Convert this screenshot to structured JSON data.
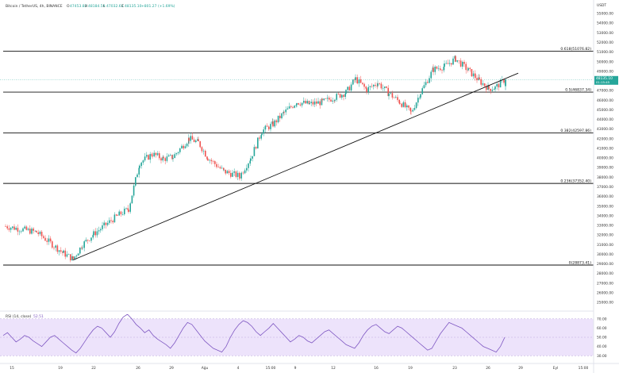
{
  "header": {
    "title": "Bitcoin / TetherUS, 4h, BINANCE",
    "o_label": "O",
    "o_value": "47453.82",
    "h_label": "H",
    "h_value": "48184.59",
    "l_label": "L",
    "l_value": "47032.63",
    "c_label": "C",
    "c_value": "48135.10",
    "change": "+801.27 (+1.69%)"
  },
  "price_axis": {
    "currency": "USDT",
    "last_price": "48135.10",
    "last_price_sub": "01:15:45",
    "ticks": [
      "55000.00",
      "54000.00",
      "53000.00",
      "52000.00",
      "51000.00",
      "50000.00",
      "49000.00",
      "48000.00",
      "47000.00",
      "46000.00",
      "45000.00",
      "44000.00",
      "43000.00",
      "42000.00",
      "41000.00",
      "40000.00",
      "39000.00",
      "38000.00",
      "37000.00",
      "36000.00",
      "35000.00",
      "34000.00",
      "33000.00",
      "32000.00",
      "31000.00",
      "30000.00",
      "29000.00",
      "28000.00",
      "27000.00",
      "26000.00",
      "25000.00"
    ]
  },
  "rsi_axis": {
    "ticks": [
      "70.00",
      "60.00",
      "50.00",
      "40.00",
      "30.00"
    ]
  },
  "time_axis": {
    "ticks": [
      "15",
      "19",
      "22",
      "26",
      "29",
      "Ağu",
      "4",
      "15:00",
      "9",
      "12",
      "16",
      "19",
      "23",
      "26",
      "29",
      "Eyl",
      "15:00"
    ]
  },
  "fib_labels": {
    "f0618": "0.618(51076.82)",
    "f05": "0.5(46837.34)",
    "f0382": "0.382(42597.86)",
    "f0236": "0.236(37352.40)",
    "f0": "0(28873.41)"
  },
  "rsi_label": {
    "name": "RSI (14, close)",
    "value": "52.51"
  },
  "colors": {
    "up": "#26a69a",
    "down": "#ef5350",
    "rsi_line": "#7e57c2",
    "rsi_band": "#ede3fb",
    "fib_line": "#111111",
    "last_price_bg": "#26a69a"
  },
  "chart_data": [
    {
      "type": "candlestick",
      "title": "Bitcoin / TetherUS, 4h, BINANCE",
      "y_axis": {
        "min": 25000,
        "max": 55000,
        "label": "USDT"
      },
      "x_ticks": [
        "15",
        "19",
        "22",
        "26",
        "29",
        "Ağu",
        "4",
        "15:00",
        "9",
        "12",
        "16",
        "19",
        "23",
        "26",
        "29",
        "Eyl",
        "15:00"
      ],
      "close_path": [
        [
          "15",
          32900
        ],
        [
          "17",
          32300
        ],
        [
          "19",
          30100
        ],
        [
          "20",
          29500
        ],
        [
          "21",
          31000
        ],
        [
          "22",
          32100
        ],
        [
          "24",
          34000
        ],
        [
          "25",
          34700
        ],
        [
          "26",
          39500
        ],
        [
          "27",
          40400
        ],
        [
          "28",
          39900
        ],
        [
          "29",
          40100
        ],
        [
          "30",
          42000
        ],
        [
          "31",
          41600
        ],
        [
          "Ağu",
          40000
        ],
        [
          "3",
          38600
        ],
        [
          "4",
          38100
        ],
        [
          "5",
          40000
        ],
        [
          "6",
          42800
        ],
        [
          "7",
          43500
        ],
        [
          "8",
          44700
        ],
        [
          "9",
          45800
        ],
        [
          "10",
          45600
        ],
        [
          "11",
          45800
        ],
        [
          "12",
          46300
        ],
        [
          "13",
          46800
        ],
        [
          "14",
          48200
        ],
        [
          "15",
          47100
        ],
        [
          "16",
          47800
        ],
        [
          "17",
          46700
        ],
        [
          "18",
          45800
        ],
        [
          "19",
          44700
        ],
        [
          "20",
          46800
        ],
        [
          "21",
          49200
        ],
        [
          "22",
          49500
        ],
        [
          "23",
          50300
        ],
        [
          "24",
          49100
        ],
        [
          "25",
          48000
        ],
        [
          "26",
          47200
        ],
        [
          "27",
          47300
        ],
        [
          "28",
          48135
        ]
      ],
      "last": {
        "open": 47453.82,
        "high": 48184.59,
        "low": 47032.63,
        "close": 48135.1
      },
      "fibonacci_levels": [
        {
          "ratio": 0.618,
          "price": 51076.82
        },
        {
          "ratio": 0.5,
          "price": 46837.34
        },
        {
          "ratio": 0.382,
          "price": 42597.86
        },
        {
          "ratio": 0.236,
          "price": 37352.4
        },
        {
          "ratio": 0,
          "price": 28873.41
        }
      ],
      "trendline": {
        "from": [
          "20",
          29400
        ],
        "to": [
          "28",
          48800
        ]
      }
    },
    {
      "type": "line",
      "title": "RSI (14, close)",
      "y_axis": {
        "min": 25,
        "max": 75
      },
      "band": [
        30,
        70
      ],
      "last_value": 52.51,
      "values": [
        52,
        55,
        50,
        45,
        48,
        52,
        50,
        46,
        43,
        40,
        45,
        50,
        52,
        48,
        44,
        40,
        36,
        33,
        38,
        45,
        52,
        58,
        62,
        60,
        55,
        50,
        56,
        65,
        72,
        76,
        70,
        64,
        60,
        55,
        58,
        52,
        48,
        45,
        42,
        38,
        44,
        52,
        60,
        66,
        64,
        58,
        52,
        46,
        42,
        38,
        36,
        34,
        40,
        50,
        58,
        64,
        68,
        66,
        62,
        56,
        52,
        56,
        60,
        65,
        60,
        55,
        50,
        45,
        48,
        52,
        50,
        46,
        44,
        48,
        52,
        56,
        58,
        54,
        50,
        46,
        42,
        40,
        38,
        44,
        52,
        58,
        62,
        64,
        60,
        56,
        54,
        58,
        62,
        60,
        56,
        52,
        48,
        44,
        40,
        36,
        38,
        46,
        54,
        60,
        66,
        64,
        62,
        60,
        56,
        52,
        48,
        44,
        40,
        38,
        36,
        34,
        40,
        50
      ]
    }
  ]
}
